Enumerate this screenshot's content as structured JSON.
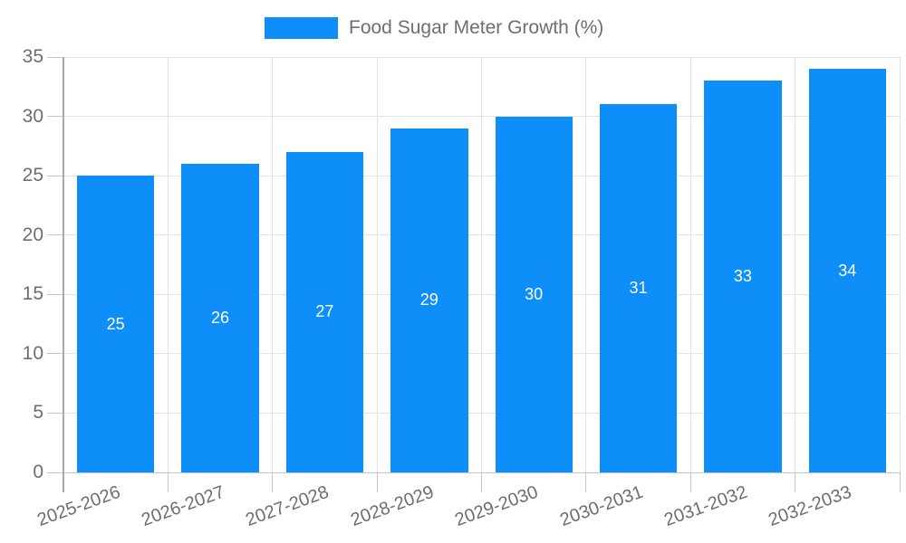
{
  "legend": {
    "label": "Food Sugar Meter Growth (%)"
  },
  "colors": {
    "bar": "#0d8ef9",
    "value_label": "#ffffff",
    "grid": "#e3e3e3",
    "tick": "#c6c6c6",
    "axis": "#a8a8a8",
    "text": "#6e6e6e",
    "background": "#ffffff"
  },
  "chart_data": {
    "type": "bar",
    "title": "Food Sugar Meter Growth (%)",
    "categories": [
      "2025-2026",
      "2026-2027",
      "2027-2028",
      "2028-2029",
      "2029-2030",
      "2030-2031",
      "2031-2032",
      "2032-2033"
    ],
    "values": [
      25,
      26,
      27,
      29,
      30,
      31,
      33,
      34
    ],
    "xlabel": "",
    "ylabel": "",
    "ylim": [
      0,
      35
    ],
    "yticks": [
      0,
      5,
      10,
      15,
      20,
      25,
      30,
      35
    ],
    "grid": true,
    "legend_position": "top-center",
    "value_labels": "inside-center",
    "x_tick_rotation_deg": -20
  }
}
